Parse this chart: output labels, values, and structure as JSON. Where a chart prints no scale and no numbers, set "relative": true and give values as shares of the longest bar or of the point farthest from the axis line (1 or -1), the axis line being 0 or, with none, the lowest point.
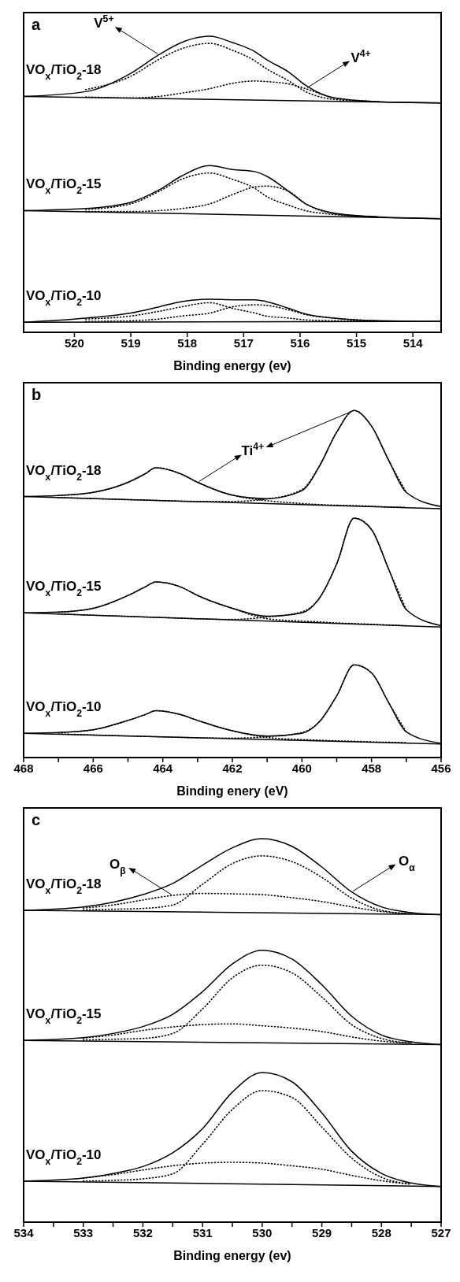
{
  "chart_data": [
    {
      "type": "line",
      "title": "a",
      "xlabel": "Binding energy (ev)",
      "relative": true,
      "xlim": [
        520.9,
        513.5
      ],
      "xticks": [
        520,
        519,
        518,
        517,
        516,
        515,
        514
      ],
      "x": [
        520.9,
        519.8,
        519.0,
        518.5,
        518.1,
        517.6,
        517.2,
        516.8,
        516.6,
        516.2,
        515.9,
        515.4,
        514.6,
        513.5
      ],
      "annotations": [
        {
          "text": "V$^{5+}$",
          "x": 518.5,
          "y": 0.938
        },
        {
          "text": "V$^{4+}$",
          "x": 515.9,
          "y": 0.823
        }
      ],
      "series": [
        {
          "name": "VO$_{x}$/TiO$_{2}$-18",
          "color": "#000000",
          "line_style": "solid",
          "values": [
            0.797,
            0.813,
            0.875,
            0.938,
            0.979,
            1.0,
            0.979,
            0.948,
            0.922,
            0.879,
            0.834,
            0.792,
            0.779,
            0.775
          ]
        },
        {
          "color": "#000000",
          "line_style": "dotted",
          "values": [
            null,
            0.82,
            0.865,
            0.922,
            0.958,
            0.976,
            0.953,
            0.917,
            0.891,
            0.849,
            0.813,
            0.787,
            0.779,
            null
          ]
        },
        {
          "color": "#000000",
          "line_style": "dotted",
          "values": [
            null,
            0.795,
            0.792,
            0.797,
            0.808,
            0.823,
            0.841,
            0.849,
            0.847,
            0.839,
            0.823,
            0.792,
            0.779,
            null
          ]
        },
        {
          "color": "#000000",
          "line_style": "solid",
          "x": [
            520.9,
            513.5
          ],
          "values": [
            0.797,
            0.775
          ]
        },
        {
          "name": "VO$_{x}$/TiO$_{2}$-15",
          "color": "#000000",
          "line_style": "solid",
          "values": [
            0.411,
            0.418,
            0.439,
            0.481,
            0.528,
            0.563,
            0.55,
            0.543,
            0.528,
            0.476,
            0.434,
            0.403,
            0.39,
            0.384
          ]
        },
        {
          "color": "#000000",
          "line_style": "dotted",
          "values": [
            null,
            0.415,
            0.434,
            0.476,
            0.517,
            0.538,
            0.517,
            0.486,
            0.46,
            0.429,
            0.411,
            0.398,
            0.389,
            null
          ]
        },
        {
          "color": "#000000",
          "line_style": "dotted",
          "values": [
            null,
            0.408,
            0.408,
            0.411,
            0.418,
            0.434,
            0.465,
            0.491,
            0.494,
            0.476,
            0.434,
            0.401,
            0.389,
            null
          ]
        },
        {
          "color": "#000000",
          "line_style": "solid",
          "x": [
            520.9,
            513.5
          ],
          "values": [
            0.411,
            0.384
          ]
        },
        {
          "name": "VO$_{x}$/TiO$_{2}$-10",
          "color": "#000000",
          "line_style": "solid",
          "values": [
            0.034,
            0.048,
            0.065,
            0.086,
            0.104,
            0.112,
            0.11,
            0.11,
            0.104,
            0.081,
            0.062,
            0.048,
            0.039,
            0.037
          ]
        },
        {
          "color": "#000000",
          "line_style": "dotted",
          "values": [
            null,
            0.045,
            0.055,
            0.071,
            0.086,
            0.1,
            0.081,
            0.065,
            0.055,
            0.048,
            0.042,
            0.039,
            0.037,
            null
          ]
        },
        {
          "color": "#000000",
          "line_style": "dotted",
          "values": [
            null,
            0.037,
            0.039,
            0.045,
            0.055,
            0.065,
            0.086,
            0.093,
            0.091,
            0.076,
            0.06,
            0.048,
            0.039,
            null
          ]
        },
        {
          "color": "#000000",
          "line_style": "solid",
          "x": [
            520.9,
            513.5
          ],
          "values": [
            0.034,
            0.037
          ]
        }
      ]
    },
    {
      "type": "line",
      "title": "b",
      "xlabel": "Binding enery (eV)",
      "relative": true,
      "xlim": [
        468,
        456
      ],
      "xticks": [
        468,
        {
          "value": 467,
          "label": null
        },
        466,
        {
          "value": 465,
          "label": null
        },
        464,
        {
          "value": 463,
          "label": null
        },
        462,
        {
          "value": 461,
          "label": null
        },
        460,
        {
          "value": 459,
          "label": null
        },
        458,
        {
          "value": 457,
          "label": null
        },
        456
      ],
      "x": [
        468,
        467,
        466,
        465,
        464.5,
        464.2,
        463.5,
        463,
        462,
        461,
        460,
        459.5,
        459,
        458.5,
        458,
        457.5,
        457,
        456
      ],
      "annotations": [
        {
          "text": "Ti$^{4+}$",
          "x": 463.0,
          "y": 0.793
        }
      ],
      "series": [
        {
          "name": "VO$_{x}$/TiO$_{2}$-18",
          "color": "#000000",
          "line_style": "solid",
          "values": [
            0.752,
            0.755,
            0.764,
            0.793,
            0.818,
            0.835,
            0.818,
            0.793,
            0.756,
            0.746,
            0.769,
            0.839,
            0.938,
            1.0,
            0.955,
            0.855,
            0.764,
            0.723
          ]
        },
        {
          "color": "#000000",
          "line_style": "dotted",
          "values": [
            null,
            0.755,
            0.764,
            0.793,
            0.818,
            0.835,
            0.818,
            0.793,
            0.756,
            0.74,
            0.732,
            0.729,
            0.727,
            0.726,
            0.724,
            0.722,
            0.721,
            null
          ]
        },
        {
          "color": "#000000",
          "line_style": "dotted",
          "values": [
            null,
            0.749,
            0.746,
            0.743,
            0.742,
            0.741,
            0.739,
            0.738,
            0.738,
            0.745,
            0.772,
            0.84,
            0.938,
            1.0,
            0.955,
            0.855,
            0.764,
            null
          ]
        },
        {
          "color": "#000000",
          "line_style": "solid",
          "x": [
            468,
            456
          ],
          "values": [
            0.752,
            0.717
          ]
        },
        {
          "name": "VO$_{x}$/TiO$_{2}$-15",
          "color": "#000000",
          "line_style": "solid",
          "values": [
            0.417,
            0.419,
            0.43,
            0.467,
            0.492,
            0.506,
            0.492,
            0.467,
            0.43,
            0.407,
            0.417,
            0.459,
            0.558,
            0.69,
            0.657,
            0.541,
            0.426,
            0.38
          ]
        },
        {
          "color": "#000000",
          "line_style": "dotted",
          "values": [
            null,
            0.419,
            0.43,
            0.467,
            0.492,
            0.506,
            0.492,
            0.467,
            0.43,
            0.4,
            0.393,
            0.391,
            0.388,
            0.386,
            0.384,
            0.382,
            0.38,
            null
          ]
        },
        {
          "color": "#000000",
          "line_style": "dotted",
          "values": [
            null,
            0.414,
            0.41,
            0.407,
            0.405,
            0.404,
            0.402,
            0.4,
            0.398,
            0.405,
            0.42,
            0.459,
            0.558,
            0.69,
            0.657,
            0.541,
            0.426,
            null
          ]
        },
        {
          "color": "#000000",
          "line_style": "solid",
          "x": [
            468,
            456
          ],
          "values": [
            0.417,
            0.376
          ]
        },
        {
          "name": "VO$_{x}$/TiO$_{2}$-10",
          "color": "#000000",
          "line_style": "solid",
          "values": [
            0.07,
            0.072,
            0.08,
            0.107,
            0.124,
            0.135,
            0.124,
            0.107,
            0.077,
            0.062,
            0.07,
            0.103,
            0.178,
            0.267,
            0.244,
            0.157,
            0.074,
            0.041
          ]
        },
        {
          "color": "#000000",
          "line_style": "dotted",
          "values": [
            null,
            0.072,
            0.08,
            0.107,
            0.124,
            0.135,
            0.124,
            0.107,
            0.077,
            0.058,
            0.052,
            0.05,
            0.048,
            0.047,
            0.045,
            0.044,
            0.043,
            null
          ]
        },
        {
          "color": "#000000",
          "line_style": "dotted",
          "values": [
            null,
            0.068,
            0.065,
            0.062,
            0.061,
            0.06,
            0.058,
            0.057,
            0.056,
            0.06,
            0.072,
            0.103,
            0.178,
            0.267,
            0.244,
            0.157,
            0.074,
            null
          ]
        },
        {
          "color": "#000000",
          "line_style": "solid",
          "x": [
            468,
            456
          ],
          "values": [
            0.07,
            0.039
          ]
        }
      ]
    },
    {
      "type": "line",
      "title": "c",
      "xlabel": "Binding energy (ev)",
      "relative": true,
      "xlim": [
        534,
        527
      ],
      "xticks": [
        534,
        {
          "value": 533.5,
          "label": null
        },
        533,
        {
          "value": 532.5,
          "label": null
        },
        532,
        {
          "value": 531.5,
          "label": null
        },
        531,
        {
          "value": 530.5,
          "label": null
        },
        530,
        {
          "value": 529.5,
          "label": null
        },
        529,
        {
          "value": 528.5,
          "label": null
        },
        528,
        {
          "value": 527.5,
          "label": null
        },
        527
      ],
      "x": [
        534,
        533,
        532.5,
        532,
        531.5,
        531,
        530.5,
        530,
        529.5,
        529,
        528.5,
        528,
        527.5,
        527
      ],
      "annotations": [
        {
          "text": "O$_{β}$",
          "x": 531.5,
          "y": 0.852
        },
        {
          "text": "O$_{α}$",
          "x": 528.5,
          "y": 0.861
        }
      ],
      "series": [
        {
          "name": "VO$_{x}$/TiO$_{2}$-18",
          "color": "#000000",
          "line_style": "solid",
          "values": [
            0.813,
            0.822,
            0.834,
            0.854,
            0.883,
            0.931,
            0.976,
            1.0,
            0.98,
            0.926,
            0.861,
            0.822,
            0.807,
            0.802
          ]
        },
        {
          "color": "#000000",
          "line_style": "dotted",
          "values": [
            null,
            0.814,
            0.816,
            0.818,
            0.827,
            0.881,
            0.935,
            0.955,
            0.94,
            0.899,
            0.845,
            0.813,
            0.804,
            null
          ]
        },
        {
          "color": "#000000",
          "line_style": "dotted",
          "values": [
            null,
            0.819,
            0.827,
            0.84,
            0.852,
            0.857,
            0.856,
            0.854,
            0.846,
            0.836,
            0.822,
            0.81,
            0.804,
            null
          ]
        },
        {
          "color": "#000000",
          "line_style": "solid",
          "x": [
            534,
            527
          ],
          "values": [
            0.813,
            0.802
          ]
        },
        {
          "name": "VO$_{x}$/TiO$_{2}$-15",
          "color": "#000000",
          "line_style": "solid",
          "values": [
            0.474,
            0.481,
            0.492,
            0.51,
            0.542,
            0.601,
            0.673,
            0.709,
            0.686,
            0.619,
            0.537,
            0.488,
            0.47,
            0.463
          ]
        },
        {
          "color": "#000000",
          "line_style": "dotted",
          "values": [
            null,
            0.475,
            0.477,
            0.479,
            0.492,
            0.556,
            0.637,
            0.67,
            0.65,
            0.587,
            0.515,
            0.479,
            0.467,
            null
          ]
        },
        {
          "color": "#000000",
          "line_style": "dotted",
          "values": [
            null,
            0.48,
            0.488,
            0.5,
            0.509,
            0.515,
            0.517,
            0.512,
            0.506,
            0.497,
            0.483,
            0.472,
            0.467,
            null
          ]
        },
        {
          "color": "#000000",
          "line_style": "solid",
          "x": [
            534,
            527
          ],
          "values": [
            0.474,
            0.463
          ]
        },
        {
          "name": "VO$_{x}$/TiO$_{2}$-10",
          "color": "#000000",
          "line_style": "solid",
          "values": [
            0.107,
            0.115,
            0.127,
            0.145,
            0.181,
            0.244,
            0.339,
            0.39,
            0.366,
            0.285,
            0.185,
            0.127,
            0.102,
            0.093
          ]
        },
        {
          "color": "#000000",
          "line_style": "dotted",
          "values": [
            null,
            0.107,
            0.109,
            0.113,
            0.126,
            0.203,
            0.294,
            0.343,
            0.325,
            0.248,
            0.167,
            0.117,
            0.099,
            null
          ]
        },
        {
          "color": "#000000",
          "line_style": "dotted",
          "values": [
            null,
            0.115,
            0.124,
            0.136,
            0.147,
            0.154,
            0.156,
            0.154,
            0.147,
            0.138,
            0.122,
            0.108,
            0.099,
            null
          ]
        },
        {
          "color": "#000000",
          "line_style": "solid",
          "x": [
            534,
            527
          ],
          "values": [
            0.107,
            0.093
          ]
        }
      ]
    }
  ]
}
